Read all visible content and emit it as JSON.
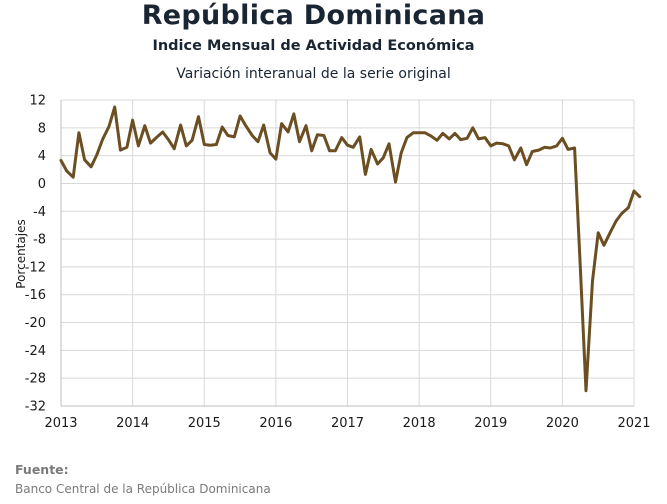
{
  "header": {
    "title": "República Dominicana",
    "subtitle": "Indice Mensual de  Actividad Económica",
    "subtitle2": "Variación interanual de la serie original"
  },
  "source": {
    "label": "Fuente:",
    "text": "Banco Central de la República Dominicana"
  },
  "colors": {
    "line": "#6b4f22",
    "grid": "#d8d8d8",
    "axis": "#bfbfbf"
  },
  "chart_data": {
    "type": "line",
    "title": "",
    "xlabel": "",
    "ylabel": "Porcentajes",
    "ylim": [
      -32,
      12
    ],
    "yticks": [
      12,
      8,
      4,
      0,
      -4,
      -8,
      -12,
      -16,
      -20,
      -24,
      -28,
      -32
    ],
    "xlim": [
      2013,
      2021
    ],
    "xticks": [
      "2013",
      "2014",
      "2015",
      "2016",
      "2017",
      "2018",
      "2019",
      "2020",
      "2021"
    ],
    "grid": true,
    "series": [
      {
        "values": [
          [
            2013.0,
            3.3
          ],
          [
            2013.08,
            1.8
          ],
          [
            2013.17,
            0.9
          ],
          [
            2013.25,
            7.3
          ],
          [
            2013.33,
            3.4
          ],
          [
            2013.42,
            2.4
          ],
          [
            2013.5,
            4.1
          ],
          [
            2013.58,
            6.3
          ],
          [
            2013.67,
            8.2
          ],
          [
            2013.75,
            11.0
          ],
          [
            2013.83,
            4.8
          ],
          [
            2013.92,
            5.2
          ],
          [
            2014.0,
            9.1
          ],
          [
            2014.08,
            5.4
          ],
          [
            2014.17,
            8.3
          ],
          [
            2014.25,
            5.8
          ],
          [
            2014.33,
            6.6
          ],
          [
            2014.42,
            7.4
          ],
          [
            2014.5,
            6.3
          ],
          [
            2014.58,
            5.0
          ],
          [
            2014.67,
            8.4
          ],
          [
            2014.75,
            5.4
          ],
          [
            2014.83,
            6.2
          ],
          [
            2014.92,
            9.6
          ],
          [
            2015.0,
            5.6
          ],
          [
            2015.08,
            5.5
          ],
          [
            2015.17,
            5.6
          ],
          [
            2015.25,
            8.1
          ],
          [
            2015.33,
            6.9
          ],
          [
            2015.42,
            6.7
          ],
          [
            2015.5,
            9.7
          ],
          [
            2015.58,
            8.3
          ],
          [
            2015.67,
            6.9
          ],
          [
            2015.75,
            6.0
          ],
          [
            2015.83,
            8.4
          ],
          [
            2015.92,
            4.4
          ],
          [
            2016.0,
            3.5
          ],
          [
            2016.08,
            8.6
          ],
          [
            2016.17,
            7.4
          ],
          [
            2016.25,
            10.0
          ],
          [
            2016.33,
            6.0
          ],
          [
            2016.42,
            8.3
          ],
          [
            2016.5,
            4.7
          ],
          [
            2016.58,
            7.0
          ],
          [
            2016.67,
            6.9
          ],
          [
            2016.75,
            4.7
          ],
          [
            2016.83,
            4.7
          ],
          [
            2016.92,
            6.6
          ],
          [
            2017.0,
            5.5
          ],
          [
            2017.08,
            5.2
          ],
          [
            2017.17,
            6.7
          ],
          [
            2017.25,
            1.3
          ],
          [
            2017.33,
            4.9
          ],
          [
            2017.42,
            2.8
          ],
          [
            2017.5,
            3.7
          ],
          [
            2017.58,
            5.7
          ],
          [
            2017.67,
            0.2
          ],
          [
            2017.75,
            4.4
          ],
          [
            2017.83,
            6.6
          ],
          [
            2017.92,
            7.3
          ],
          [
            2018.0,
            7.3
          ],
          [
            2018.08,
            7.3
          ],
          [
            2018.17,
            6.8
          ],
          [
            2018.25,
            6.2
          ],
          [
            2018.33,
            7.2
          ],
          [
            2018.42,
            6.4
          ],
          [
            2018.5,
            7.2
          ],
          [
            2018.58,
            6.3
          ],
          [
            2018.67,
            6.5
          ],
          [
            2018.75,
            8.0
          ],
          [
            2018.83,
            6.4
          ],
          [
            2018.92,
            6.6
          ],
          [
            2019.0,
            5.4
          ],
          [
            2019.08,
            5.8
          ],
          [
            2019.17,
            5.7
          ],
          [
            2019.25,
            5.4
          ],
          [
            2019.33,
            3.4
          ],
          [
            2019.42,
            5.1
          ],
          [
            2019.5,
            2.7
          ],
          [
            2019.58,
            4.6
          ],
          [
            2019.67,
            4.8
          ],
          [
            2019.75,
            5.2
          ],
          [
            2019.83,
            5.1
          ],
          [
            2019.92,
            5.4
          ],
          [
            2020.0,
            6.5
          ],
          [
            2020.08,
            4.9
          ],
          [
            2020.17,
            5.1
          ],
          [
            2020.25,
            -12.0
          ],
          [
            2020.33,
            -29.8
          ],
          [
            2020.42,
            -14.0
          ],
          [
            2020.5,
            -7.1
          ],
          [
            2020.58,
            -8.9
          ],
          [
            2020.67,
            -7.0
          ],
          [
            2020.75,
            -5.4
          ],
          [
            2020.83,
            -4.3
          ],
          [
            2020.92,
            -3.5
          ],
          [
            2021.0,
            -1.1
          ],
          [
            2021.08,
            -1.9
          ]
        ]
      }
    ]
  }
}
